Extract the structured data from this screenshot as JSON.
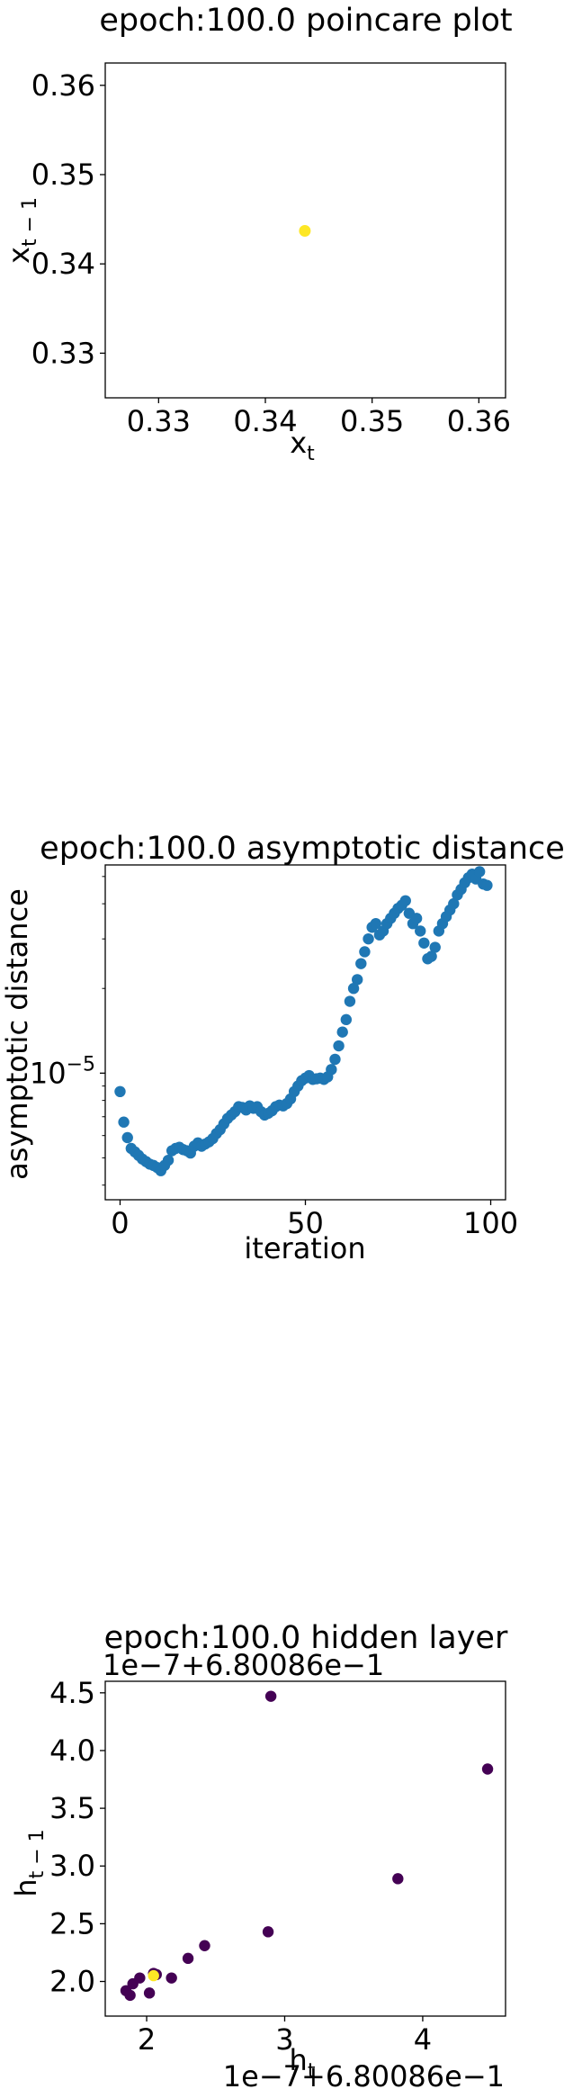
{
  "chart_data": [
    {
      "type": "scatter",
      "title": "epoch:100.0 poincare plot",
      "xlabel_base": "x",
      "xlabel_sub": "t",
      "ylabel_base": "x",
      "ylabel_sub": "t − 1",
      "xlim": [
        0.325,
        0.3625
      ],
      "ylim": [
        0.325,
        0.3625
      ],
      "xticks": [
        "0.33",
        "0.34",
        "0.35",
        "0.36"
      ],
      "yticks": [
        "0.33",
        "0.34",
        "0.35",
        "0.36"
      ],
      "xtick_values": [
        0.33,
        0.34,
        0.35,
        0.36
      ],
      "ytick_values": [
        0.33,
        0.34,
        0.35,
        0.36
      ],
      "points": [
        {
          "x": 0.3437,
          "y": 0.3437
        }
      ],
      "color": "#fde725"
    },
    {
      "type": "scatter",
      "title": "epoch:100.0 asymptotic distance",
      "xlabel": "iteration",
      "ylabel": "asymptotic distance",
      "yscale": "log",
      "xlim": [
        -4,
        104
      ],
      "ylim_log10": [
        -5.45,
        -4.26
      ],
      "xticks": [
        "0",
        "50",
        "100"
      ],
      "xtick_values": [
        0,
        50,
        100
      ],
      "ytick_base": "10",
      "ytick_exp": "−5",
      "ytick_value": 1e-05,
      "color": "#1f77b4",
      "x": [
        0,
        1,
        2,
        3,
        4,
        5,
        6,
        7,
        8,
        9,
        10,
        11,
        12,
        13,
        14,
        15,
        16,
        17,
        18,
        19,
        20,
        21,
        22,
        23,
        24,
        25,
        26,
        27,
        28,
        29,
        30,
        31,
        32,
        33,
        34,
        35,
        36,
        37,
        38,
        39,
        40,
        41,
        42,
        43,
        44,
        45,
        46,
        47,
        48,
        49,
        50,
        51,
        52,
        53,
        54,
        55,
        56,
        57,
        58,
        59,
        60,
        61,
        62,
        63,
        64,
        65,
        66,
        67,
        68,
        69,
        70,
        71,
        72,
        73,
        74,
        75,
        76,
        77,
        78,
        79,
        80,
        81,
        82,
        83,
        84,
        85,
        86,
        87,
        88,
        89,
        90,
        91,
        92,
        93,
        94,
        95,
        96,
        97,
        98,
        99
      ],
      "y": [
        8.6e-06,
        6.7e-06,
        5.9e-06,
        5.4e-06,
        5.25e-06,
        5.1e-06,
        4.95e-06,
        4.85e-06,
        4.75e-06,
        4.7e-06,
        4.62e-06,
        4.5e-06,
        4.7e-06,
        4.9e-06,
        5.3e-06,
        5.4e-06,
        5.45e-06,
        5.35e-06,
        5.3e-06,
        5.2e-06,
        5.5e-06,
        5.65e-06,
        5.5e-06,
        5.6e-06,
        5.7e-06,
        5.85e-06,
        6.1e-06,
        6.3e-06,
        6.6e-06,
        6.9e-06,
        7.1e-06,
        7.3e-06,
        7.6e-06,
        7.55e-06,
        7.4e-06,
        7.65e-06,
        7.5e-06,
        7.6e-06,
        7.3e-06,
        7.1e-06,
        7.2e-06,
        7.35e-06,
        7.6e-06,
        7.7e-06,
        7.65e-06,
        7.8e-06,
        8.1e-06,
        8.6e-06,
        9e-06,
        9.4e-06,
        9.6e-06,
        9.8e-06,
        9.5e-06,
        9.55e-06,
        9.6e-06,
        9.5e-06,
        9.7e-06,
        1.03e-05,
        1.12e-05,
        1.25e-05,
        1.4e-05,
        1.55e-05,
        1.8e-05,
        2e-05,
        2.15e-05,
        2.45e-05,
        2.7e-05,
        3e-05,
        3.3e-05,
        3.4e-05,
        3.1e-05,
        3.2e-05,
        3.4e-05,
        3.55e-05,
        3.7e-05,
        3.85e-05,
        3.95e-05,
        4.1e-05,
        3.7e-05,
        3.4e-05,
        3.55e-05,
        3.2e-05,
        2.9e-05,
        2.55e-05,
        2.6e-05,
        2.8e-05,
        3.2e-05,
        3.4e-05,
        3.6e-05,
        3.8e-05,
        4e-05,
        4.3e-05,
        4.5e-05,
        4.75e-05,
        4.95e-05,
        5.1e-05,
        4.9e-05,
        5.2e-05,
        4.7e-05,
        4.65e-05
      ]
    },
    {
      "type": "scatter",
      "title": "epoch:100.0 hidden layer",
      "offset_text": "1e−7+6.80086e−1",
      "xlabel_base": "h",
      "xlabel_sub": "t",
      "ylabel_base": "h",
      "ylabel_sub": "t − 1",
      "xlim": [
        1.7,
        4.6
      ],
      "ylim": [
        1.7,
        4.6
      ],
      "xticks": [
        "2",
        "3",
        "4"
      ],
      "xtick_values": [
        2,
        3,
        4
      ],
      "yticks": [
        "2.0",
        "2.5",
        "3.0",
        "3.5",
        "4.0",
        "4.5"
      ],
      "ytick_values": [
        2.0,
        2.5,
        3.0,
        3.5,
        4.0,
        4.5
      ],
      "series": [
        {
          "color": "#440154",
          "x": [
            1.85,
            1.88,
            1.9,
            1.95,
            2.02,
            2.05,
            2.07,
            2.18,
            2.3,
            2.42,
            2.88,
            2.9,
            3.82,
            4.47
          ],
          "y": [
            1.92,
            1.88,
            1.98,
            2.03,
            1.9,
            2.07,
            2.06,
            2.03,
            2.2,
            2.31,
            2.43,
            4.47,
            2.89,
            3.84
          ]
        },
        {
          "color": "#fde725",
          "x": [
            2.05
          ],
          "y": [
            2.05
          ]
        }
      ]
    }
  ]
}
